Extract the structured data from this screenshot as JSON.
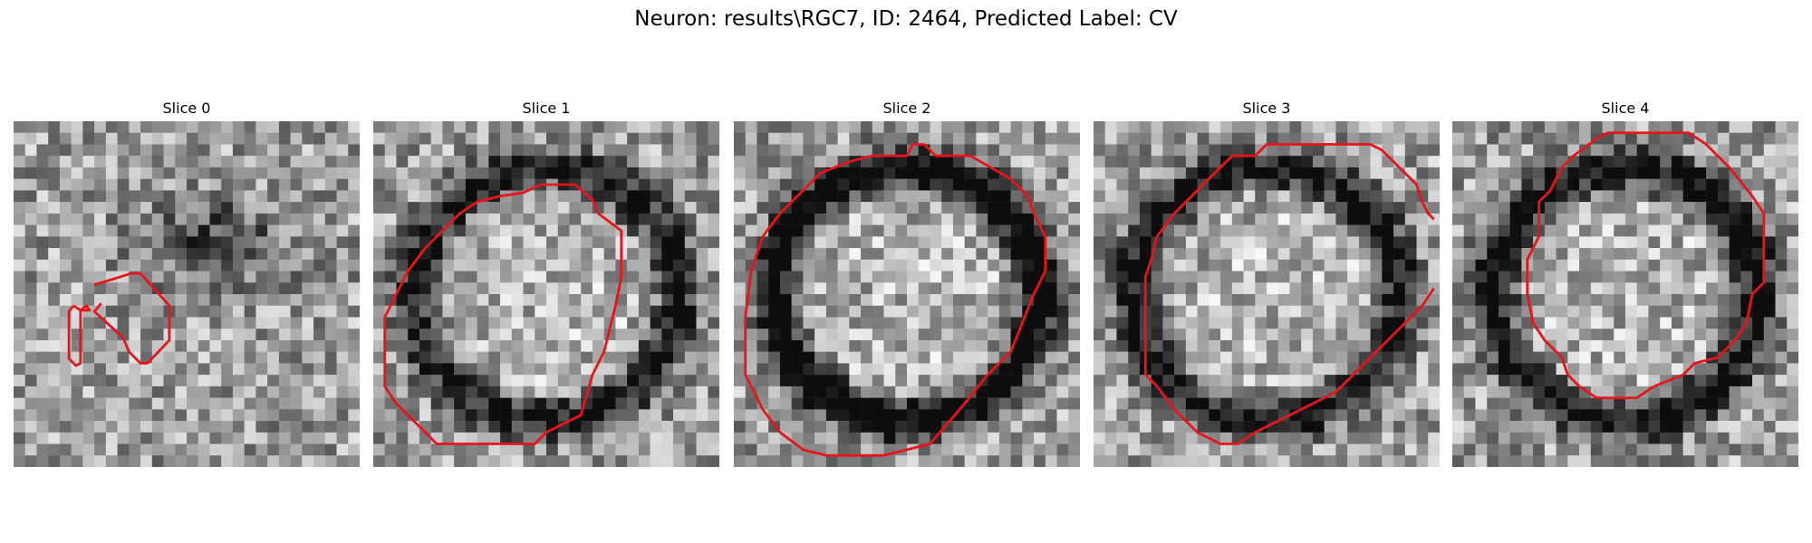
{
  "figure": {
    "title": "Neuron: results\\RGC7, ID: 2464, Predicted Label: CV"
  },
  "slices": [
    {
      "title": "Slice 0",
      "seed": 11,
      "ring": 0.0
    },
    {
      "title": "Slice 1",
      "seed": 23,
      "ring": 0.55
    },
    {
      "title": "Slice 2",
      "seed": 37,
      "ring": 0.75
    },
    {
      "title": "Slice 3",
      "seed": 51,
      "ring": 0.6
    },
    {
      "title": "Slice 4",
      "seed": 67,
      "ring": 0.65
    }
  ],
  "colors": {
    "contour": "#e8141b"
  }
}
